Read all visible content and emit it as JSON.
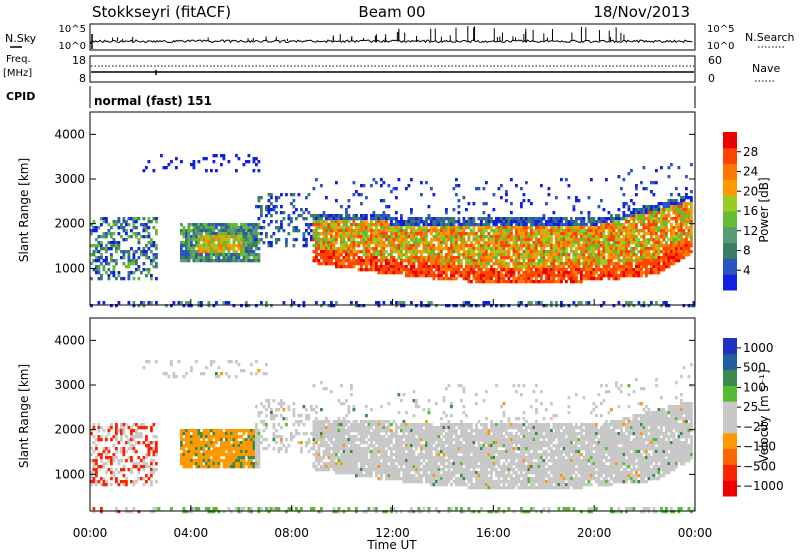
{
  "header": {
    "station": "Stokkseyri (fitACF)",
    "beam": "Beam 00",
    "date": "18/Nov/2013"
  },
  "noise_panel": {
    "left_label": "N.Sky",
    "right_label": "N.Search",
    "ticks_left": [
      "10^5",
      "10^0"
    ],
    "ticks_right": [
      "10^5",
      "10^0"
    ]
  },
  "freq_panel": {
    "left_label_1": "Freq.",
    "left_label_2": "[MHz]",
    "right_label": "Nave",
    "ticks_left": [
      "18",
      "8"
    ],
    "ticks_right": [
      "60",
      "0"
    ]
  },
  "cpid_panel": {
    "label": "CPID",
    "mode": "normal (fast) 151"
  },
  "colors": {
    "power": [
      "#1020e0",
      "#2a55c0",
      "#3a7d60",
      "#5a9a70",
      "#66bb33",
      "#99cc22",
      "#ff9900",
      "#ff7700",
      "#ff4400",
      "#ee0000"
    ],
    "velocity": [
      "#2030c0",
      "#2060a0",
      "#3a8a50",
      "#55bb33",
      "#c8c8c8",
      "#c8c8c8",
      "#ff9900",
      "#ff6600",
      "#ff2200",
      "#ee0000"
    ]
  },
  "chart_data": [
    {
      "type": "heatmap",
      "title": "Power",
      "ylabel": "Slant Range [km]",
      "xlabel": "Time UT",
      "ylim": [
        180,
        4500
      ],
      "y_ticks": [
        1000,
        2000,
        3000,
        4000
      ],
      "x_ticks": [
        "00:00",
        "04:00",
        "08:00",
        "12:00",
        "16:00",
        "20:00",
        "00:00"
      ],
      "xlim_hours": [
        0,
        24
      ],
      "colorbar": {
        "label": "Power [dB]",
        "ticks": [
          "4",
          "8",
          "12",
          "16",
          "20",
          "24",
          "28"
        ]
      }
    },
    {
      "type": "heatmap",
      "title": "Velocity",
      "ylabel": "Slant Range [km]",
      "xlabel": "Time UT",
      "ylim": [
        180,
        4500
      ],
      "y_ticks": [
        1000,
        2000,
        3000,
        4000
      ],
      "x_ticks": [
        "00:00",
        "04:00",
        "08:00",
        "12:00",
        "16:00",
        "20:00",
        "00:00"
      ],
      "xlim_hours": [
        0,
        24
      ],
      "colorbar": {
        "label": "Velocity [m s⁻¹]",
        "ticks": [
          "1000",
          "500",
          "100",
          "25",
          "−25",
          "−100",
          "−500",
          "−1000"
        ]
      }
    }
  ]
}
